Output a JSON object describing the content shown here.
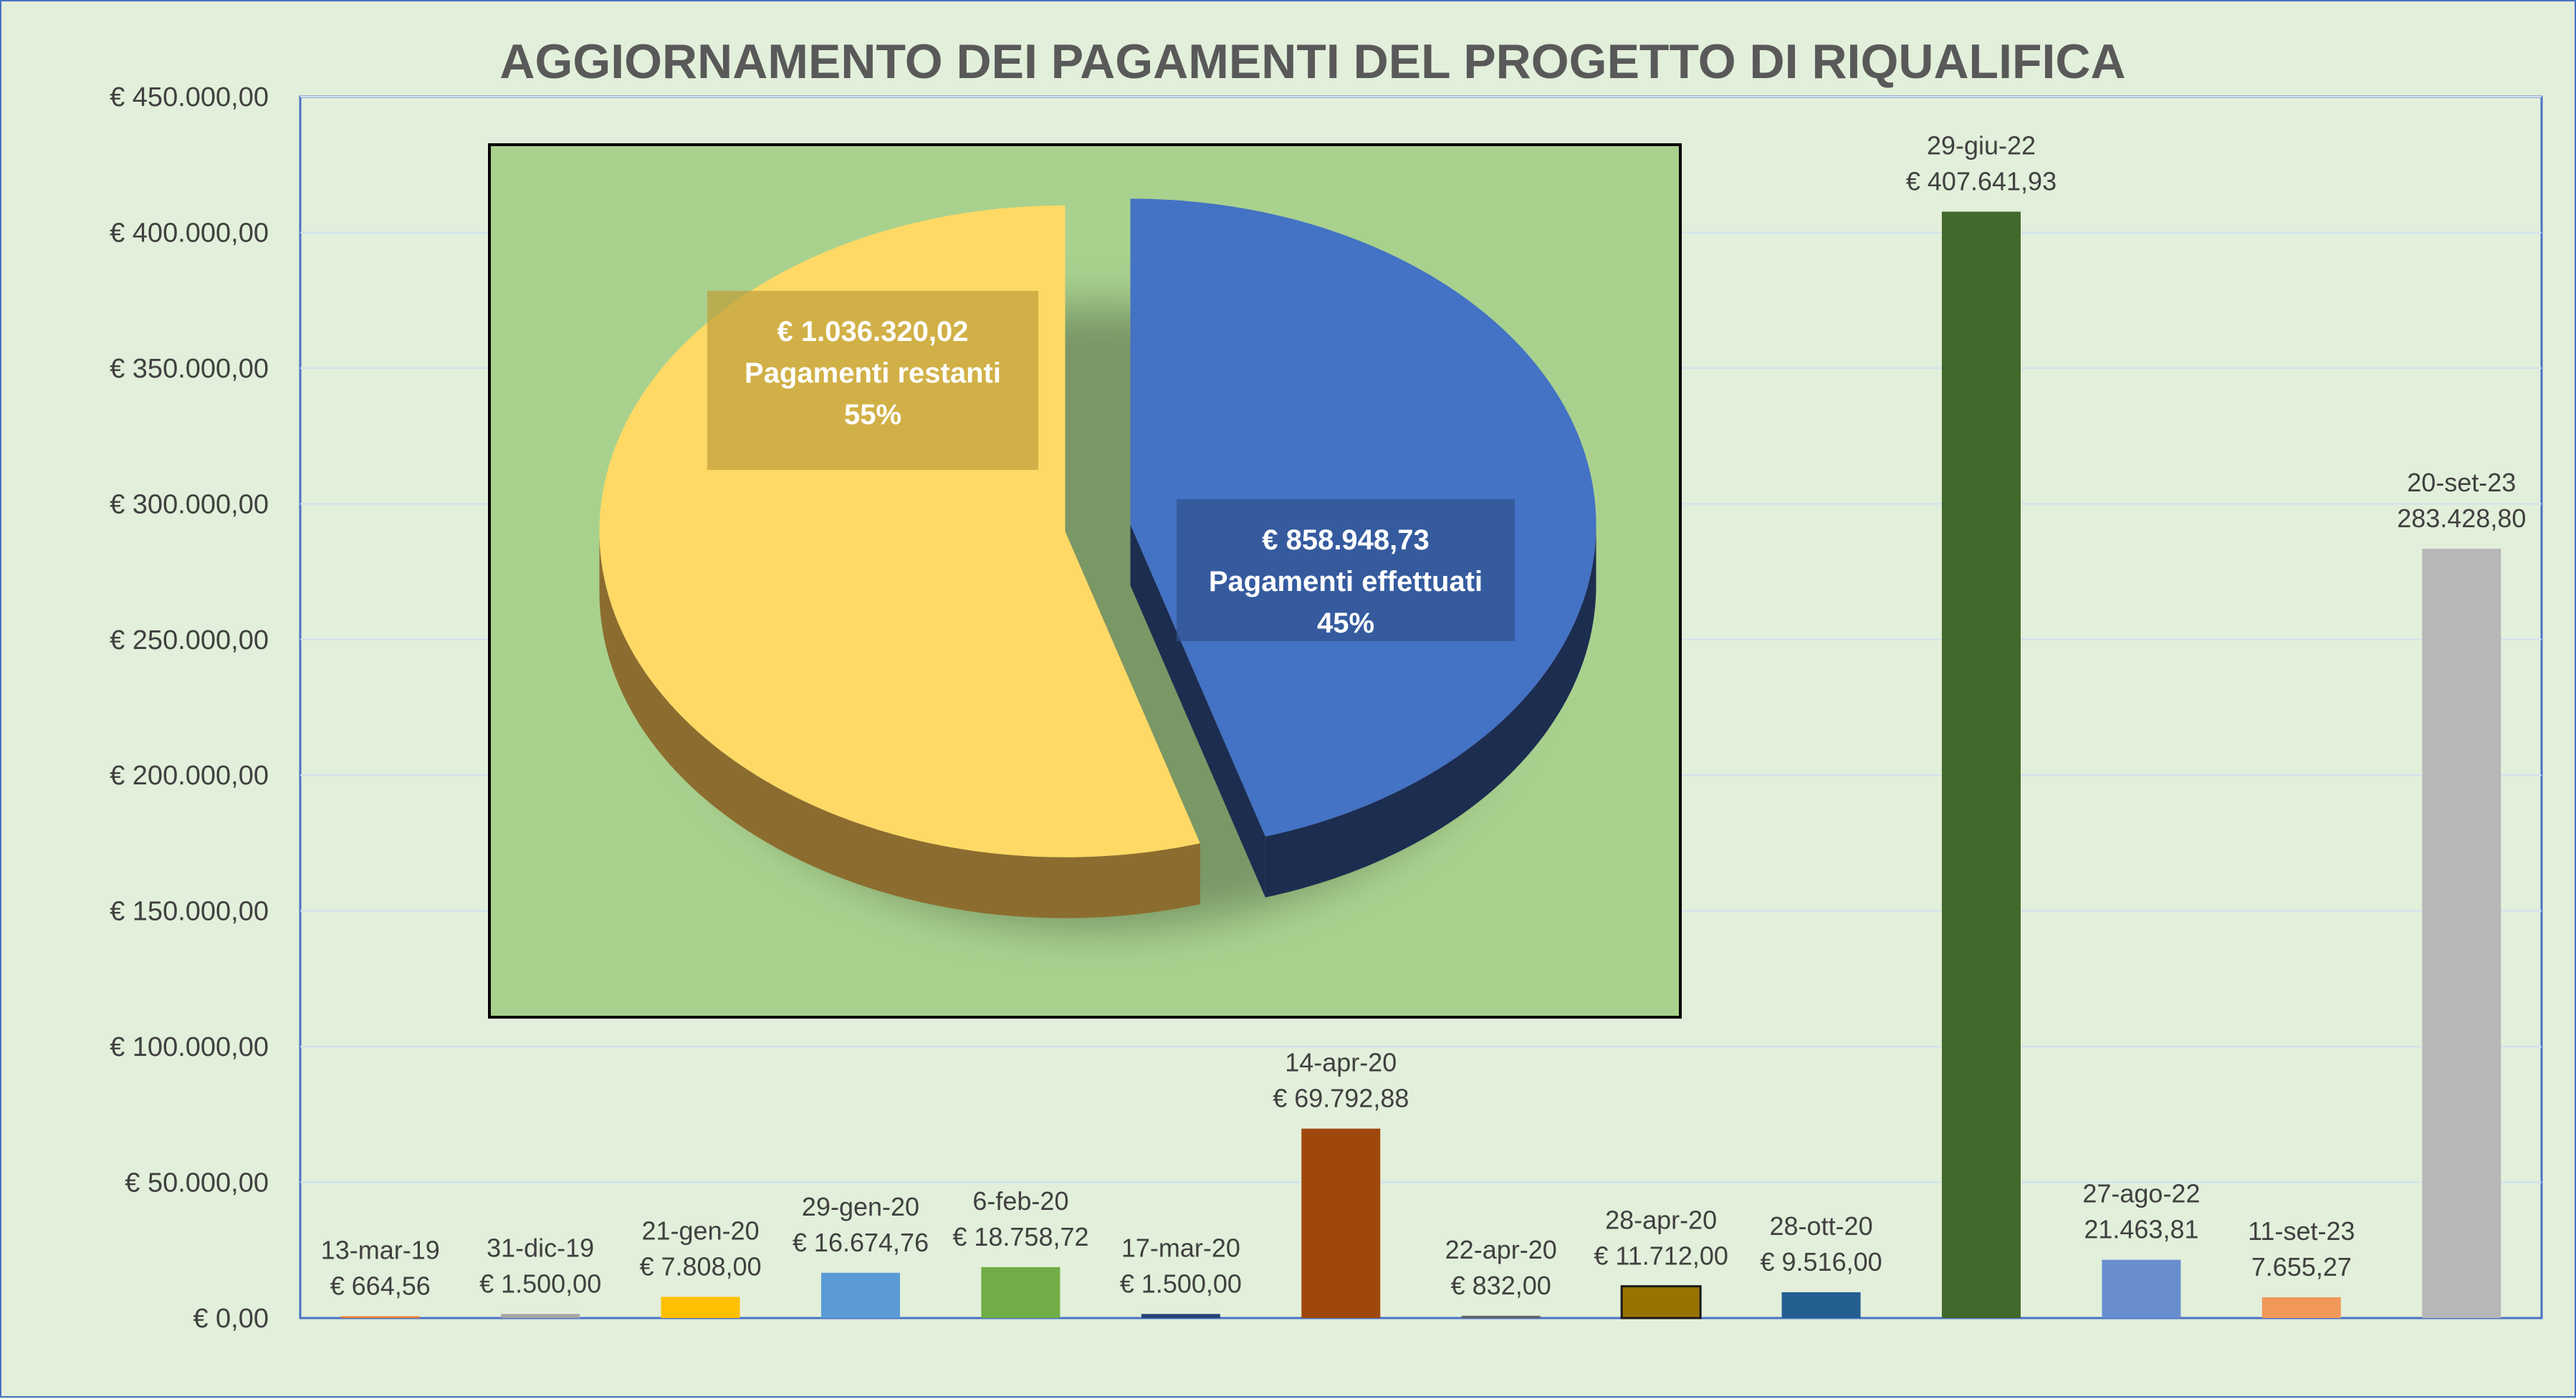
{
  "chart_data": [
    {
      "type": "bar",
      "title": "AGGIORNAMENTO DEI PAGAMENTI DEL PROGETTO DI RIQUALIFICA",
      "ylim": [
        0,
        450000
      ],
      "ytick_values": [
        0,
        50000,
        100000,
        150000,
        200000,
        250000,
        300000,
        350000,
        400000,
        450000
      ],
      "ytick_labels": [
        "€ 0,00",
        "€ 50.000,00",
        "€ 100.000,00",
        "€ 150.000,00",
        "€ 200.000,00",
        "€ 250.000,00",
        "€ 300.000,00",
        "€ 350.000,00",
        "€ 400.000,00",
        "€ 450.000,00"
      ],
      "grid": true,
      "categories": [
        "13-mar-19",
        "31-dic-19",
        "21-gen-20",
        "29-gen-20",
        "6-feb-20",
        "17-mar-20",
        "14-apr-20",
        "22-apr-20",
        "28-apr-20",
        "28-ott-20",
        "29-giu-22",
        "27-ago-22",
        "11-set-23",
        "20-set-23"
      ],
      "values": [
        664.56,
        1500.0,
        7808.0,
        16674.76,
        18758.72,
        1500.0,
        69792.88,
        832.0,
        11712.0,
        9516.0,
        407641.93,
        21463.81,
        7655.27,
        283428.8
      ],
      "value_labels": [
        "€ 664,56",
        "€ 1.500,00",
        "€ 7.808,00",
        "€ 16.674,76",
        "€ 18.758,72",
        "€ 1.500,00",
        "€ 69.792,88",
        "€ 832,00",
        "€ 11.712,00",
        "€ 9.516,00",
        "€ 407.641,93",
        "21.463,81",
        "7.655,27",
        "283.428,80"
      ],
      "colors": [
        "#ed7d31",
        "#a5a5a5",
        "#ffc000",
        "#5b9bd5",
        "#70ad47",
        "#264478",
        "#9e480e",
        "#636363",
        "#997300",
        "#255e91",
        "#43682b",
        "#698ed0",
        "#f1975a",
        "#b7b7b7"
      ]
    },
    {
      "type": "pie",
      "slices": [
        {
          "name": "Pagamenti restanti",
          "value": 1036320.02,
          "percent": 55,
          "value_label": "€ 1.036.320,02",
          "percent_label": "55%",
          "color": "#ffd966",
          "side_color": "#8c6d2f"
        },
        {
          "name": "Pagamenti effettuati",
          "value": 858948.73,
          "percent": 45,
          "value_label": "€ 858.948,73",
          "percent_label": "45%",
          "color": "#4472c4",
          "side_color": "#1c2d50"
        }
      ],
      "background": "#a9d18e"
    }
  ]
}
